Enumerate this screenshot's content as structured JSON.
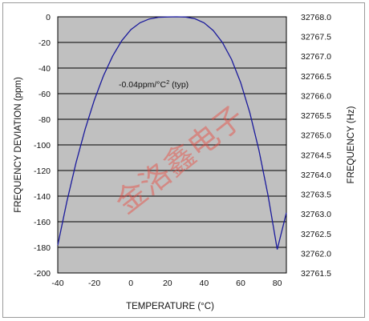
{
  "chart_data": {
    "type": "line",
    "xlabel": "TEMPERATURE (°C)",
    "ylabel": "FREQUENCY DEVIATION (ppm)",
    "y2label": "FREQUENCY (Hz)",
    "xlim": [
      -40,
      85
    ],
    "ylim": [
      -200,
      0
    ],
    "y2lim": [
      32761.5,
      32768.0
    ],
    "x_ticks": [
      "-40",
      "-20",
      "0",
      "20",
      "40",
      "60",
      "80"
    ],
    "y_ticks": [
      "0",
      "-20",
      "-40",
      "-60",
      "-80",
      "-100",
      "-120",
      "-140",
      "-160",
      "-180",
      "-200"
    ],
    "y2_ticks": [
      "32768.0",
      "32767.5",
      "32767.0",
      "32766.5",
      "32766.0",
      "32765.5",
      "32765.0",
      "32764.5",
      "32764.0",
      "32763.5",
      "32763.0",
      "32762.5",
      "32762.0",
      "32761.5"
    ],
    "grid": "horizontal",
    "plot_bg": "#c0c0c0",
    "line_color": "#1a1a9c",
    "annotation": {
      "text_prefix": "-0.04ppm/°C",
      "superscript": "2",
      "text_suffix": " (typ)"
    },
    "series": [
      {
        "x": [
          -40,
          -35,
          -30,
          -25,
          -20,
          -15,
          -10,
          -5,
          0,
          5,
          10,
          15,
          20,
          25,
          30,
          35,
          40,
          45,
          50,
          55,
          60,
          65,
          70,
          75,
          80,
          85
        ],
        "y": [
          -178.3,
          -144.1,
          -113.9,
          -87.6,
          -65.0,
          -46.0,
          -30.7,
          -18.6,
          -10.0,
          -4.6,
          -1.7,
          -0.4,
          -0.1,
          0.0,
          -0.2,
          -1.5,
          -4.7,
          -10.7,
          -20.0,
          -33.2,
          -51.3,
          -74.8,
          -104.1,
          -139.6,
          -181.6,
          -153.0
        ]
      }
    ]
  },
  "watermark": "金洛鑫电子"
}
